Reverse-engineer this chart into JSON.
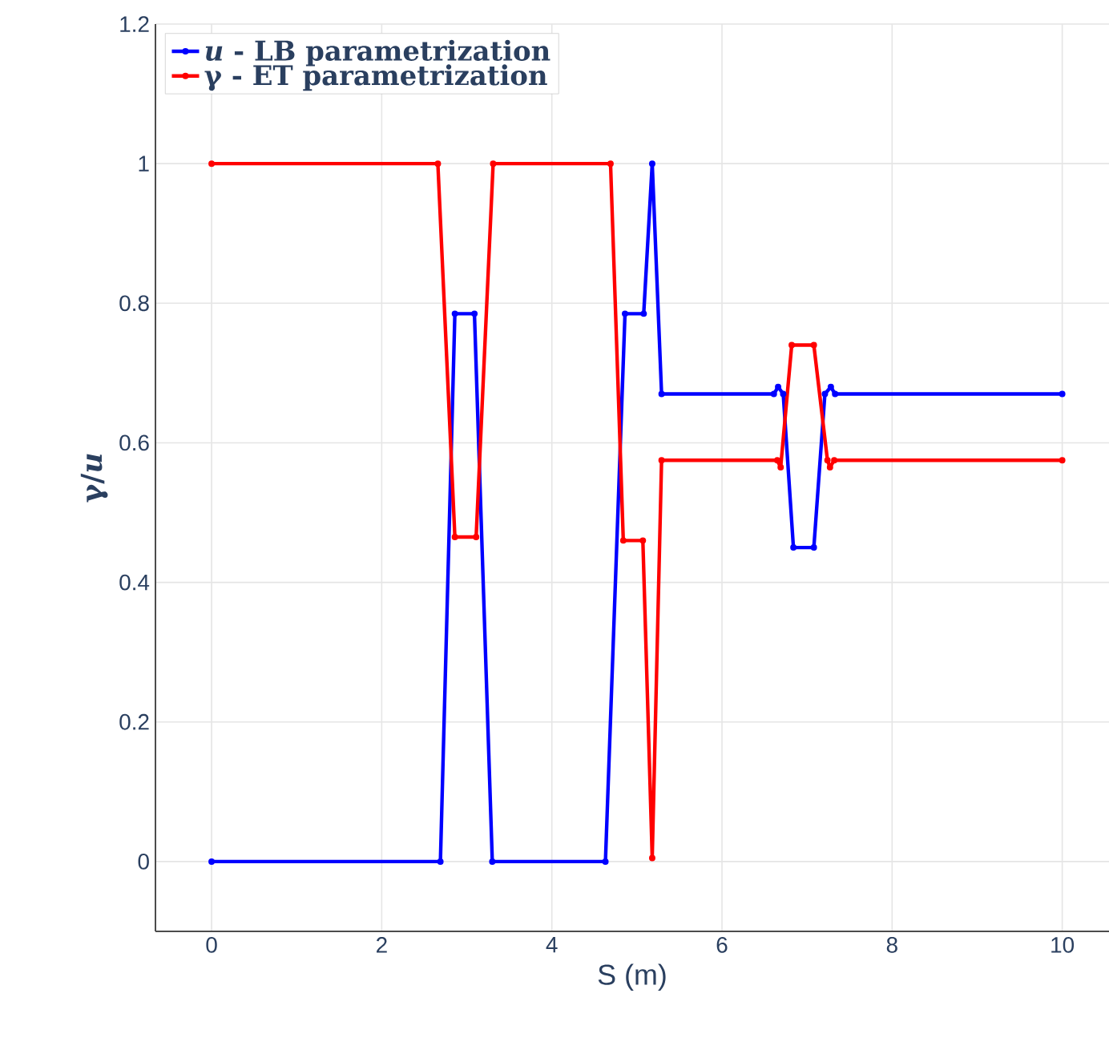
{
  "chart_data": {
    "type": "line",
    "xlabel": "S (m)",
    "ylabel": "γ/*u*",
    "xlim": [
      -0.66,
      10.55
    ],
    "ylim": [
      -0.1,
      1.2
    ],
    "xticks": [
      0,
      2,
      4,
      6,
      8,
      10
    ],
    "yticks": [
      0,
      0.2,
      0.4,
      0.6,
      0.8,
      1,
      1.2
    ],
    "grid": true,
    "legend": "top left",
    "marker": "circle",
    "line_style": "solid",
    "series": [
      {
        "name": "*u* - LB parametrization",
        "color": "#0000ff",
        "x": [
          0,
          2.69,
          2.86,
          3.09,
          3.3,
          4.63,
          4.86,
          5.08,
          5.18,
          5.29,
          6.61,
          6.66,
          6.72,
          6.84,
          7.08,
          7.21,
          7.28,
          7.33,
          10.0
        ],
        "values": [
          0,
          0,
          0.785,
          0.785,
          0,
          0,
          0.785,
          0.785,
          1.0,
          0.67,
          0.67,
          0.68,
          0.67,
          0.45,
          0.45,
          0.67,
          0.68,
          0.67,
          0.67
        ]
      },
      {
        "name": "γ - ET parametrization",
        "color": "#ff0000",
        "x": [
          0,
          2.66,
          2.86,
          3.11,
          3.31,
          4.69,
          4.84,
          5.07,
          5.18,
          5.29,
          6.65,
          6.69,
          6.82,
          7.08,
          7.24,
          7.27,
          7.32,
          10.0
        ],
        "values": [
          1,
          1,
          0.465,
          0.465,
          1,
          1,
          0.46,
          0.46,
          0.005,
          0.575,
          0.575,
          0.565,
          0.74,
          0.74,
          0.575,
          0.565,
          0.575,
          0.575
        ]
      }
    ]
  }
}
